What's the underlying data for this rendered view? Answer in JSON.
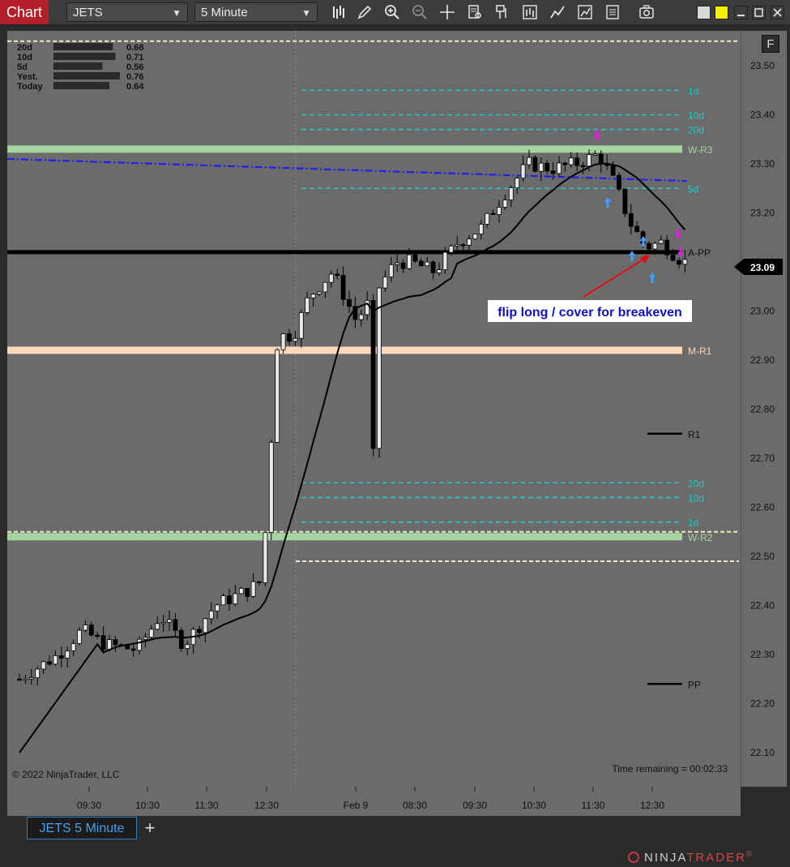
{
  "toolbar": {
    "chart_label": "Chart",
    "instrument": "JETS",
    "interval": "5 Minute"
  },
  "icons": [
    "bar-chart-icon",
    "pencil-icon",
    "zoom-in-icon",
    "zoom-out-icon",
    "crosshair-icon",
    "properties-icon",
    "data-box-icon",
    "strategies-icon",
    "indicators-icon",
    "templates-icon",
    "template-lines-icon",
    "screenshot-icon"
  ],
  "window_buttons": {
    "colors": [
      "#d8d8d8",
      "#f5f000",
      "#d8d8d8",
      "#d8d8d8"
    ]
  },
  "tab": {
    "label": "JETS 5 Minute",
    "add_label": "+"
  },
  "brand": {
    "prefix": "NINJA",
    "suffix": "TRADER",
    "mark": "®"
  },
  "chart_data": {
    "type": "candlestick",
    "instrument": "JETS",
    "ylim": [
      22.05,
      23.55
    ],
    "y_ticks": [
      22.1,
      22.2,
      22.3,
      22.4,
      22.5,
      22.6,
      22.7,
      22.8,
      22.9,
      23.0,
      23.1,
      23.2,
      23.3,
      23.4,
      23.5
    ],
    "y_tick_labels": [
      "22.10",
      "22.20",
      "22.30",
      "22.40",
      "22.50",
      "22.60",
      "22.70",
      "22.80",
      "22.90",
      "23.00",
      "23.10",
      "23.20",
      "23.30",
      "23.40",
      "23.50"
    ],
    "x_labels": [
      "09:30",
      "10:30",
      "11:30",
      "12:30",
      "Feb 9",
      "08:30",
      "09:30",
      "10:30",
      "11:30",
      "12:30"
    ],
    "current_price": "23.09",
    "copyright": "© 2022 NinjaTrader, LLC",
    "time_remaining": "Time remaining = 00:02:33",
    "f_button": "F",
    "volume_stats": [
      {
        "label": "20d",
        "value": "0.68"
      },
      {
        "label": "10d",
        "value": "0.71"
      },
      {
        "label": "5d",
        "value": "0.56"
      },
      {
        "label": "Yest.",
        "value": "0.76"
      },
      {
        "label": "Today",
        "value": "0.64"
      }
    ],
    "levels": [
      {
        "label": "1d",
        "price": 23.45,
        "color": "#29c4c4",
        "style": "dashed"
      },
      {
        "label": "10d",
        "price": 23.4,
        "color": "#29c4c4",
        "style": "dashed"
      },
      {
        "label": "20d",
        "price": 23.37,
        "color": "#29c4c4",
        "style": "dashed"
      },
      {
        "label": "W-R3",
        "price": 23.33,
        "color": "#a6d4a0",
        "style": "band"
      },
      {
        "label": "5d",
        "price": 23.25,
        "color": "#29c4c4",
        "style": "dashed"
      },
      {
        "label": "A-PP",
        "price": 23.12,
        "color": "#000000",
        "style": "thick"
      },
      {
        "label": "M-R1",
        "price": 22.92,
        "color": "#ffd8bc",
        "style": "band"
      },
      {
        "label": "R1",
        "price": 22.75,
        "color": "#000000",
        "style": "short"
      },
      {
        "label": "20d",
        "price": 22.65,
        "color": "#29c4c4",
        "style": "dashed"
      },
      {
        "label": "10d",
        "price": 22.62,
        "color": "#29c4c4",
        "style": "dashed"
      },
      {
        "label": "1d",
        "price": 22.57,
        "color": "#29c4c4",
        "style": "dashed"
      },
      {
        "label": "W-R2",
        "price": 22.54,
        "color": "#a6d4a0",
        "style": "band"
      },
      {
        "label": "PP",
        "price": 22.24,
        "color": "#000000",
        "style": "short"
      }
    ],
    "hlines_dotted": [
      {
        "price": 23.55,
        "color": "#f4e9b5"
      },
      {
        "price": 22.55,
        "color": "#f4e9b5"
      },
      {
        "price": 22.49,
        "color": "#f4e9b5"
      }
    ],
    "trendline": {
      "from": [
        0,
        23.31
      ],
      "to": [
        110,
        23.265
      ],
      "color": "#1f1ff0"
    },
    "annotation": {
      "text": "flip long / cover for breakeven",
      "arrow_to_bar": 102,
      "arrow_to_price": 23.11
    }
  }
}
